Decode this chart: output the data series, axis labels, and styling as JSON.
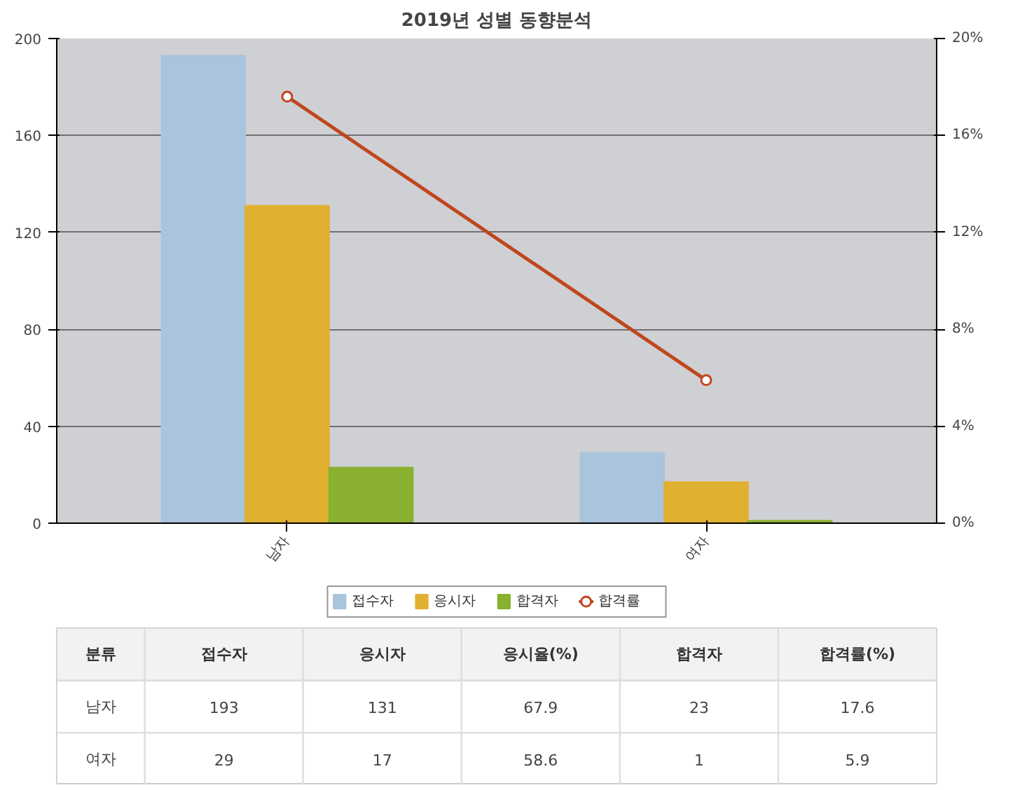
{
  "chart_data": [
    {
      "type": "bar",
      "title": "2019년 성별 동향분석",
      "categories": [
        "남자",
        "여자"
      ],
      "series": [
        {
          "name": "접수자",
          "color": "#a9c4dc",
          "values": [
            193,
            29
          ]
        },
        {
          "name": "응시자",
          "color": "#e0b030",
          "values": [
            131,
            17
          ]
        },
        {
          "name": "합격자",
          "color": "#8ab030",
          "values": [
            23,
            1
          ]
        },
        {
          "name": "합격률",
          "type": "line",
          "axis": "y2",
          "color": "#c0461e",
          "values": [
            17.6,
            5.9
          ]
        }
      ],
      "ylim": [
        0,
        200
      ],
      "yticks": [
        0,
        40,
        80,
        120,
        160,
        200
      ],
      "y2lim": [
        0,
        20
      ],
      "y2ticks": [
        {
          "value": 0,
          "label": "0%"
        },
        {
          "value": 4,
          "label": "4%"
        },
        {
          "value": 8,
          "label": "8%"
        },
        {
          "value": 12,
          "label": "12%"
        },
        {
          "value": 16,
          "label": "16%"
        },
        {
          "value": 20,
          "label": "20%"
        }
      ],
      "grid": "y",
      "legend": "bottom",
      "marker": "circle"
    },
    {
      "type": "other",
      "categories": [
        "분류",
        "접수자",
        "응시자",
        "응시율(%)",
        "합격자",
        "합격률(%)"
      ],
      "y_categories": [
        "남자",
        "여자"
      ],
      "cell_labels": [
        [
          "193",
          "131",
          "67.9",
          "23",
          "17.6"
        ],
        [
          "29",
          "17",
          "58.6",
          "1",
          "5.9"
        ]
      ]
    }
  ]
}
